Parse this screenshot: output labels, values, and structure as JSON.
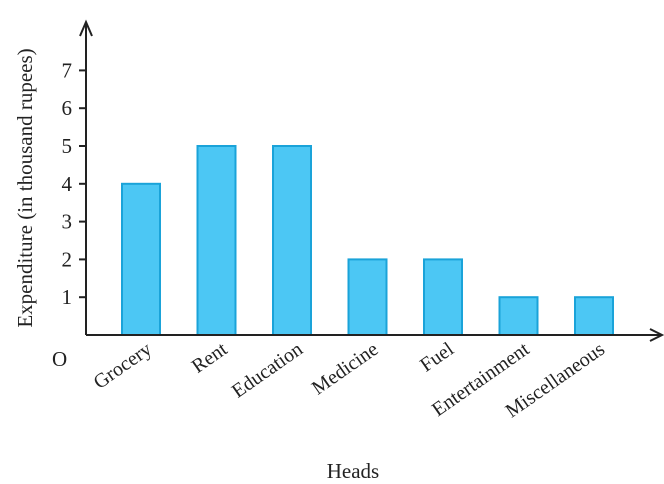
{
  "chart_data": {
    "type": "bar",
    "categories": [
      "Grocery",
      "Rent",
      "Education",
      "Medicine",
      "Fuel",
      "Entertainment",
      "Miscellaneous"
    ],
    "values": [
      4,
      5,
      5,
      2,
      2,
      1,
      1
    ],
    "xlabel": "Heads",
    "ylabel": "Expenditure (in thousand rupees)",
    "yticks": [
      1,
      2,
      3,
      4,
      5,
      6,
      7
    ],
    "ylim": [
      0,
      7
    ],
    "origin_label": "O",
    "grid": false,
    "bar_color": "#4cc7f4",
    "bar_edge_color": "#1aa3d9"
  }
}
